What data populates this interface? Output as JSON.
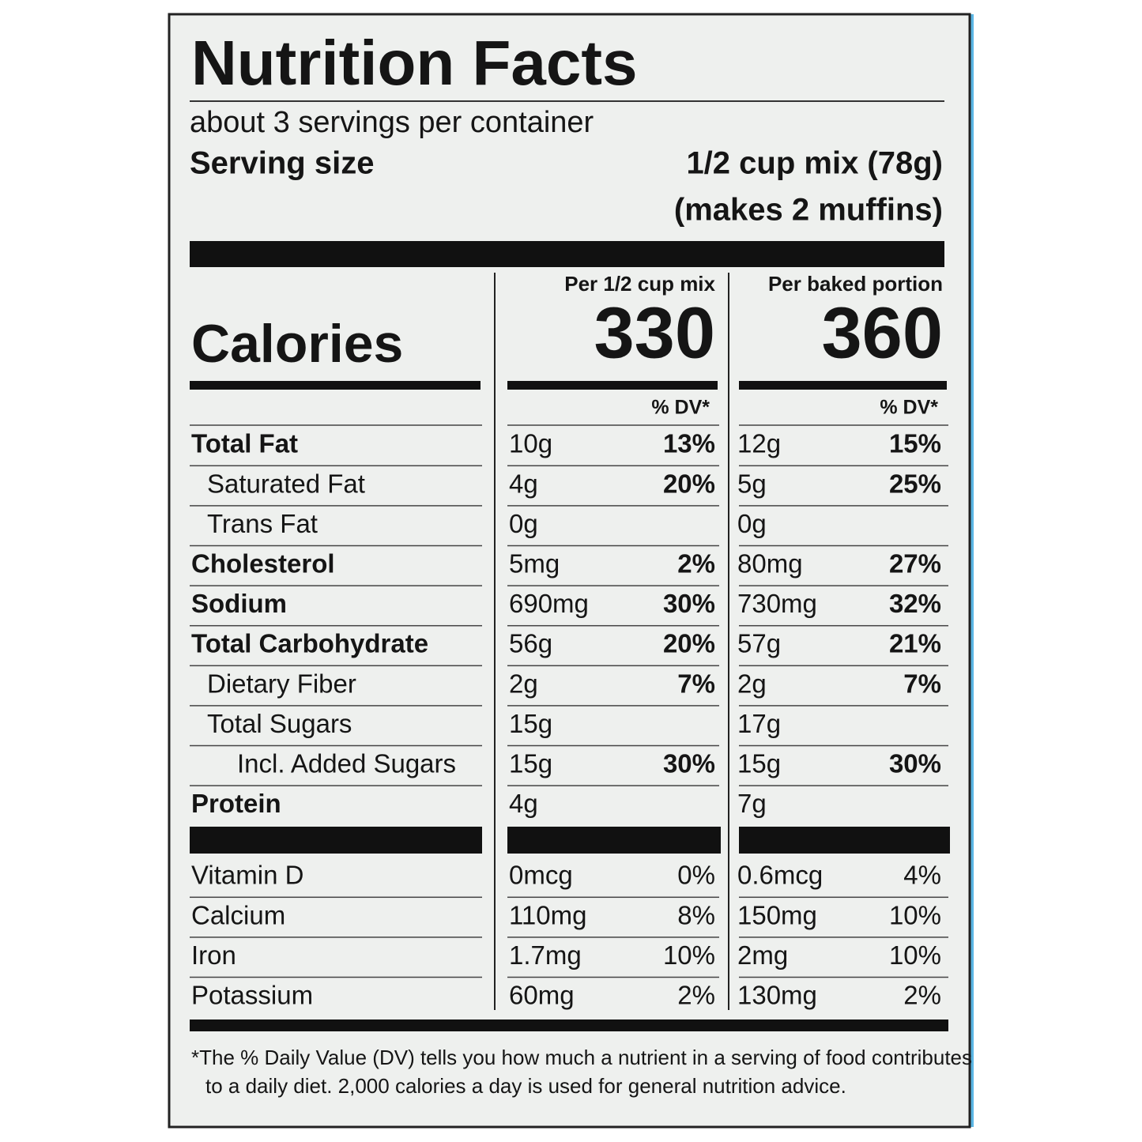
{
  "header": {
    "title": "Nutrition Facts",
    "servings": "about 3 servings per container",
    "serving_size_label": "Serving size",
    "serving_size": "1/2 cup mix (78g)",
    "serving_size_note": "(makes 2 muffins)"
  },
  "columns": [
    "Per 1/2 cup mix",
    "Per baked portion"
  ],
  "calories": {
    "label": "Calories",
    "values": [
      330,
      360
    ]
  },
  "dv_header": [
    "% DV*",
    "% DV*"
  ],
  "nutrients": [
    {
      "name": "Total Fat",
      "bold": true,
      "indent": 0,
      "values": [
        [
          "10g",
          "13%"
        ],
        [
          "12g",
          "15%"
        ]
      ]
    },
    {
      "name": "Saturated Fat",
      "bold": false,
      "indent": 1,
      "values": [
        [
          "4g",
          "20%"
        ],
        [
          "5g",
          "25%"
        ]
      ]
    },
    {
      "name": "Trans Fat",
      "bold": false,
      "indent": 1,
      "values": [
        [
          "0g"
        ],
        [
          "0g"
        ]
      ]
    },
    {
      "name": "Cholesterol",
      "bold": true,
      "indent": 0,
      "values": [
        [
          "5mg",
          "2%"
        ],
        [
          "80mg",
          "27%"
        ]
      ]
    },
    {
      "name": "Sodium",
      "bold": true,
      "indent": 0,
      "values": [
        [
          "690mg",
          "30%"
        ],
        [
          "730mg",
          "32%"
        ]
      ]
    },
    {
      "name": "Total Carbohydrate",
      "bold": true,
      "indent": 0,
      "values": [
        [
          "56g",
          "20%"
        ],
        [
          "57g",
          "21%"
        ]
      ]
    },
    {
      "name": "Dietary Fiber",
      "bold": false,
      "indent": 1,
      "values": [
        [
          "2g",
          "7%"
        ],
        [
          "2g",
          "7%"
        ]
      ]
    },
    {
      "name": "Total Sugars",
      "bold": false,
      "indent": 1,
      "values": [
        [
          "15g"
        ],
        [
          "17g"
        ]
      ]
    },
    {
      "name": "Incl. Added Sugars",
      "bold": false,
      "indent": 2,
      "values": [
        [
          "15g",
          "30%"
        ],
        [
          "15g",
          "30%"
        ]
      ]
    },
    {
      "name": "Protein",
      "bold": true,
      "indent": 0,
      "values": [
        [
          "4g"
        ],
        [
          "7g"
        ]
      ]
    }
  ],
  "vitamins": [
    {
      "name": "Vitamin D",
      "values": [
        [
          "0mcg",
          "0%"
        ],
        [
          "0.6mcg",
          "4%"
        ]
      ]
    },
    {
      "name": "Calcium",
      "values": [
        [
          "110mg",
          "8%"
        ],
        [
          "150mg",
          "10%"
        ]
      ]
    },
    {
      "name": "Iron",
      "values": [
        [
          "1.7mg",
          "10%"
        ],
        [
          "2mg",
          "10%"
        ]
      ]
    },
    {
      "name": "Potassium",
      "values": [
        [
          "60mg",
          "2%"
        ],
        [
          "130mg",
          "2%"
        ]
      ]
    }
  ],
  "footnote": [
    "*The % Daily Value (DV) tells you how much a nutrient in a serving of food contributes",
    "to a daily diet. 2,000 calories a day is used for general nutrition advice."
  ]
}
